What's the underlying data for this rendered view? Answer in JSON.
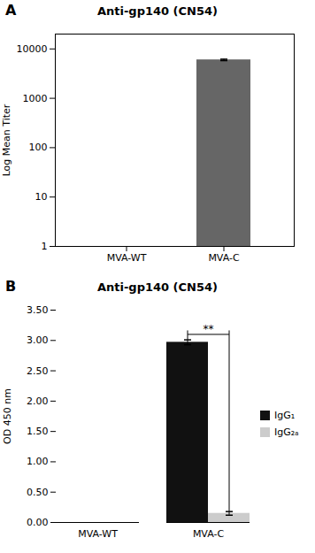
{
  "chart_data": [
    {
      "type": "bar",
      "panel_label": "A",
      "title": "Anti-gp140 (CN54)",
      "ylabel": "Log Mean Titer",
      "categories": [
        "MVA-WT",
        "MVA-C"
      ],
      "values": [
        null,
        6000
      ],
      "errors": [
        null,
        200
      ],
      "color": "#666666",
      "log": "y",
      "ylim": [
        1,
        20000
      ],
      "yticks": [
        1,
        10,
        100,
        1000,
        10000
      ],
      "grid": false
    },
    {
      "type": "bar",
      "panel_label": "B",
      "title": "Anti-gp140 (CN54)",
      "ylabel": "OD 450 nm",
      "categories": [
        "MVA-WT",
        "MVA-C"
      ],
      "series": [
        {
          "name": "IgG₁",
          "color": "#111111",
          "values": [
            0.0,
            2.97
          ],
          "errors": [
            null,
            0.04
          ]
        },
        {
          "name": "IgG₂ₐ",
          "color": "#cccccc",
          "values": [
            0.0,
            0.15
          ],
          "errors": [
            null,
            0.03
          ]
        }
      ],
      "ylim": [
        0,
        3.5
      ],
      "yticks": [
        {
          "value": 0.0,
          "label": "0.00"
        },
        {
          "value": 0.5,
          "label": "0.50"
        },
        {
          "value": 1.0,
          "label": "1.00"
        },
        {
          "value": 1.5,
          "label": "1.50"
        },
        {
          "value": 2.0,
          "label": "2.00"
        },
        {
          "value": 2.5,
          "label": "2.50"
        },
        {
          "value": 3.0,
          "label": "3.00"
        },
        {
          "value": 3.5,
          "label": "3.50"
        }
      ],
      "grid": false,
      "legend": "right",
      "annotations": [
        {
          "text": "**",
          "category": "MVA-C",
          "series": [
            "IgG₁",
            "IgG₂ₐ"
          ],
          "y": 3.1
        }
      ]
    }
  ]
}
